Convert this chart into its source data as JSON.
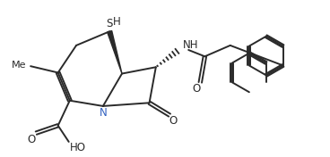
{
  "bg_color": "#ffffff",
  "line_color": "#2a2a2a",
  "line_width": 1.4,
  "font_size": 8.5,
  "fig_width": 3.68,
  "fig_height": 1.76,
  "xlim": [
    0,
    10
  ],
  "ylim": [
    0,
    4.8
  ]
}
